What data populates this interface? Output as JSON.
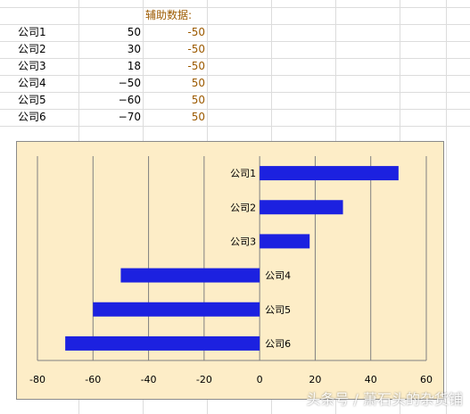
{
  "sheet": {
    "aux_header": "辅助数据:",
    "rows": [
      {
        "name": "公司1",
        "value": "50",
        "aux": "-50"
      },
      {
        "name": "公司2",
        "value": "30",
        "aux": "-50"
      },
      {
        "name": "公司3",
        "value": "18",
        "aux": "-50"
      },
      {
        "name": "公司4",
        "value": "−50",
        "aux": "50"
      },
      {
        "name": "公司5",
        "value": "−60",
        "aux": "50"
      },
      {
        "name": "公司6",
        "value": "−70",
        "aux": "50"
      }
    ]
  },
  "chart_data": {
    "type": "bar",
    "orientation": "horizontal",
    "categories": [
      "公司1",
      "公司2",
      "公司3",
      "公司4",
      "公司5",
      "公司6"
    ],
    "values": [
      50,
      30,
      18,
      -50,
      -60,
      -70
    ],
    "xlim": [
      -80,
      60
    ],
    "xticks": [
      "-80",
      "-60",
      "-40",
      "-20",
      "0",
      "20",
      "40",
      "60"
    ],
    "grid": "vertical",
    "bar_color": "#1c21e0",
    "plot_background": "#fdedc7"
  },
  "watermark": "头条号 / 萧石头的杂货铺"
}
